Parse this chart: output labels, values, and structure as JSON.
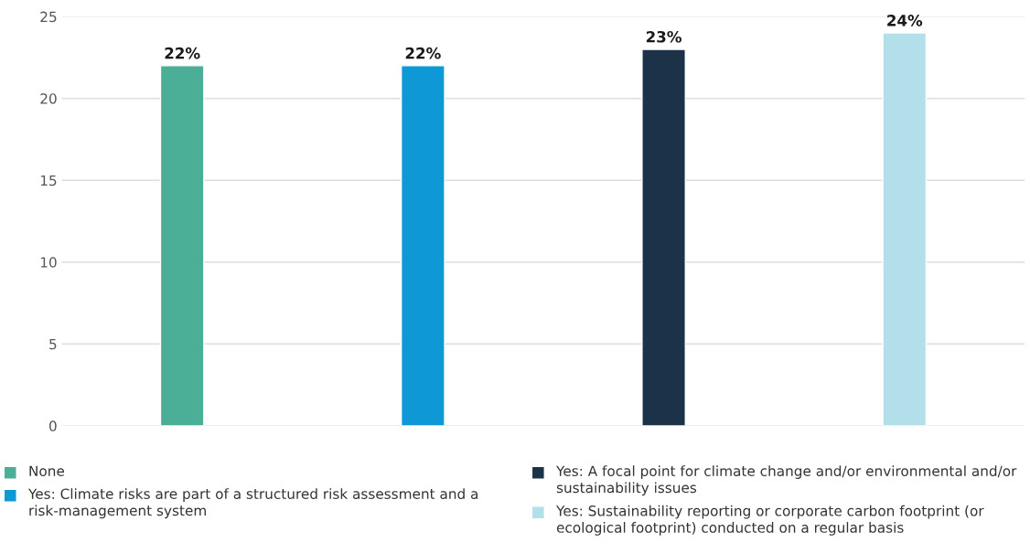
{
  "chart_data": {
    "type": "bar",
    "categories": [
      null,
      null,
      null,
      null
    ],
    "series": [
      {
        "name": "None",
        "color": "#4aaf96",
        "values": [
          22,
          null,
          null,
          null
        ],
        "value_labels": [
          "22%",
          null,
          null,
          null
        ]
      },
      {
        "name": "Yes: Climate risks are part of a structured risk assessment and a risk-management system",
        "color": "#0f98d6",
        "values": [
          null,
          22,
          null,
          null
        ],
        "value_labels": [
          null,
          "22%",
          null,
          null
        ]
      },
      {
        "name": "Yes: A focal point for climate change and/or environmental and/or sustainability issues",
        "color": "#1b3249",
        "values": [
          null,
          null,
          23,
          null
        ],
        "value_labels": [
          null,
          null,
          "23%",
          null
        ]
      },
      {
        "name": "Yes: Sustainability reporting or corporate carbon footprint (or ecological footprint) conducted on a regular basis",
        "color": "#b3dfeb",
        "values": [
          null,
          null,
          null,
          24
        ],
        "value_labels": [
          null,
          null,
          null,
          "24%"
        ]
      }
    ],
    "ylim": [
      0,
      25
    ],
    "yticks": [
      0,
      5,
      10,
      15,
      20,
      25
    ],
    "grid": "y",
    "legend": "bottom",
    "marker": "square"
  }
}
